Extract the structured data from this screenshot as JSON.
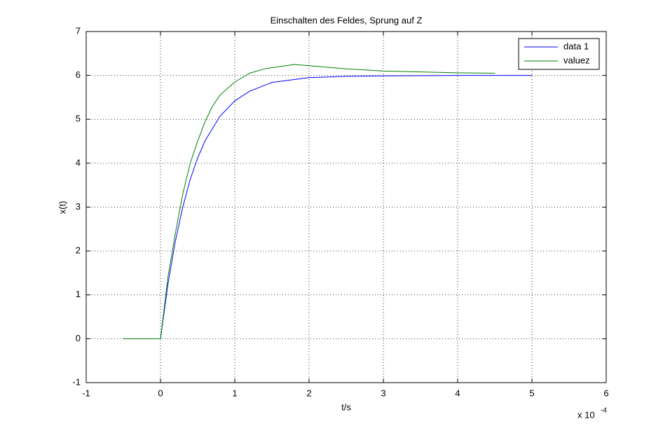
{
  "chart_data": {
    "type": "line",
    "title": "Einschalten des Feldes, Sprung auf Z",
    "x_label": "t/s",
    "y_label": "x(t)",
    "x_multiplier": {
      "base": "x 10",
      "exponent": "-4"
    },
    "xlim": [
      -1,
      6
    ],
    "xticks": [
      -1,
      0,
      1,
      2,
      3,
      4,
      5,
      6
    ],
    "ylim": [
      -1,
      7
    ],
    "yticks": [
      -1,
      0,
      1,
      2,
      3,
      4,
      5,
      6,
      7
    ],
    "grid": true,
    "legend": "top-right",
    "series": [
      {
        "name": "data 1",
        "color": "#0000ff",
        "x": [
          0,
          0.1,
          0.2,
          0.3,
          0.4,
          0.5,
          0.6,
          0.8,
          1.0,
          1.2,
          1.5,
          2,
          2.5,
          3,
          4,
          5
        ],
        "values": [
          0,
          1.24,
          2.22,
          3.0,
          3.63,
          4.12,
          4.51,
          5.07,
          5.42,
          5.64,
          5.84,
          5.95,
          5.98,
          5.99,
          6,
          6
        ]
      },
      {
        "name": "valuez",
        "color": "#008000",
        "x": [
          -0.5,
          -0.25,
          0,
          0.1,
          0.2,
          0.3,
          0.4,
          0.5,
          0.6,
          0.7,
          0.8,
          1.0,
          1.2,
          1.4,
          1.6,
          1.8,
          2.0,
          2.5,
          3,
          3.5,
          4,
          4.5
        ],
        "values": [
          0,
          0,
          0,
          1.4,
          2.4,
          3.3,
          4.0,
          4.5,
          4.95,
          5.3,
          5.55,
          5.85,
          6.05,
          6.15,
          6.2,
          6.25,
          6.22,
          6.15,
          6.1,
          6.08,
          6.06,
          6.05
        ]
      }
    ]
  }
}
